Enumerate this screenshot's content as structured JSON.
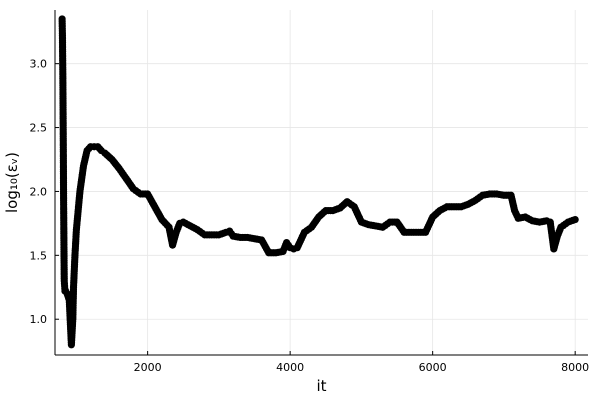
{
  "chart_data": {
    "type": "scatter",
    "xlabel": "it",
    "ylabel": "log₁₀(εᵥ)",
    "xlim": [
      700,
      8180
    ],
    "ylim": [
      0.72,
      3.42
    ],
    "xticks": [
      2000,
      4000,
      6000,
      8000
    ],
    "xtick_labels": [
      "2000",
      "4000",
      "6000",
      "8000"
    ],
    "yticks": [
      1.0,
      1.5,
      2.0,
      2.5,
      3.0
    ],
    "ytick_labels": [
      "1.0",
      "1.5",
      "2.0",
      "2.5",
      "3.0"
    ],
    "grid": true,
    "legend": "none",
    "marker_color": "#000000",
    "series": [
      {
        "name": "",
        "x": [
          800,
          805,
          810,
          815,
          820,
          825,
          830,
          840,
          850,
          870,
          900,
          930,
          950,
          960,
          980,
          1000,
          1050,
          1100,
          1150,
          1200,
          1250,
          1300,
          1350,
          1400,
          1500,
          1600,
          1700,
          1800,
          1900,
          2000,
          2100,
          2200,
          2300,
          2350,
          2400,
          2450,
          2500,
          2600,
          2700,
          2800,
          2900,
          3000,
          3100,
          3150,
          3200,
          3300,
          3400,
          3500,
          3600,
          3700,
          3800,
          3900,
          3950,
          4000,
          4050,
          4100,
          4200,
          4300,
          4400,
          4500,
          4600,
          4700,
          4800,
          4900,
          5000,
          5100,
          5200,
          5300,
          5400,
          5500,
          5600,
          5700,
          5800,
          5900,
          6000,
          6100,
          6200,
          6300,
          6400,
          6500,
          6600,
          6700,
          6800,
          6900,
          7000,
          7100,
          7150,
          7200,
          7300,
          7400,
          7500,
          7600,
          7650,
          7700,
          7750,
          7800,
          7900,
          8000
        ],
        "y": [
          3.35,
          3.2,
          2.9,
          2.5,
          2.0,
          1.6,
          1.3,
          1.22,
          1.22,
          1.2,
          1.15,
          0.8,
          1.0,
          1.25,
          1.5,
          1.7,
          2.0,
          2.2,
          2.32,
          2.35,
          2.35,
          2.35,
          2.32,
          2.3,
          2.25,
          2.18,
          2.1,
          2.02,
          1.98,
          1.98,
          1.88,
          1.78,
          1.72,
          1.58,
          1.68,
          1.75,
          1.76,
          1.73,
          1.7,
          1.66,
          1.66,
          1.66,
          1.68,
          1.69,
          1.65,
          1.64,
          1.64,
          1.63,
          1.62,
          1.52,
          1.52,
          1.53,
          1.6,
          1.56,
          1.55,
          1.56,
          1.68,
          1.72,
          1.8,
          1.85,
          1.85,
          1.87,
          1.92,
          1.88,
          1.76,
          1.74,
          1.73,
          1.72,
          1.76,
          1.76,
          1.68,
          1.68,
          1.68,
          1.68,
          1.8,
          1.85,
          1.88,
          1.88,
          1.88,
          1.9,
          1.93,
          1.97,
          1.98,
          1.98,
          1.97,
          1.97,
          1.85,
          1.79,
          1.8,
          1.77,
          1.76,
          1.77,
          1.76,
          1.55,
          1.65,
          1.72,
          1.76,
          1.78
        ]
      }
    ]
  }
}
